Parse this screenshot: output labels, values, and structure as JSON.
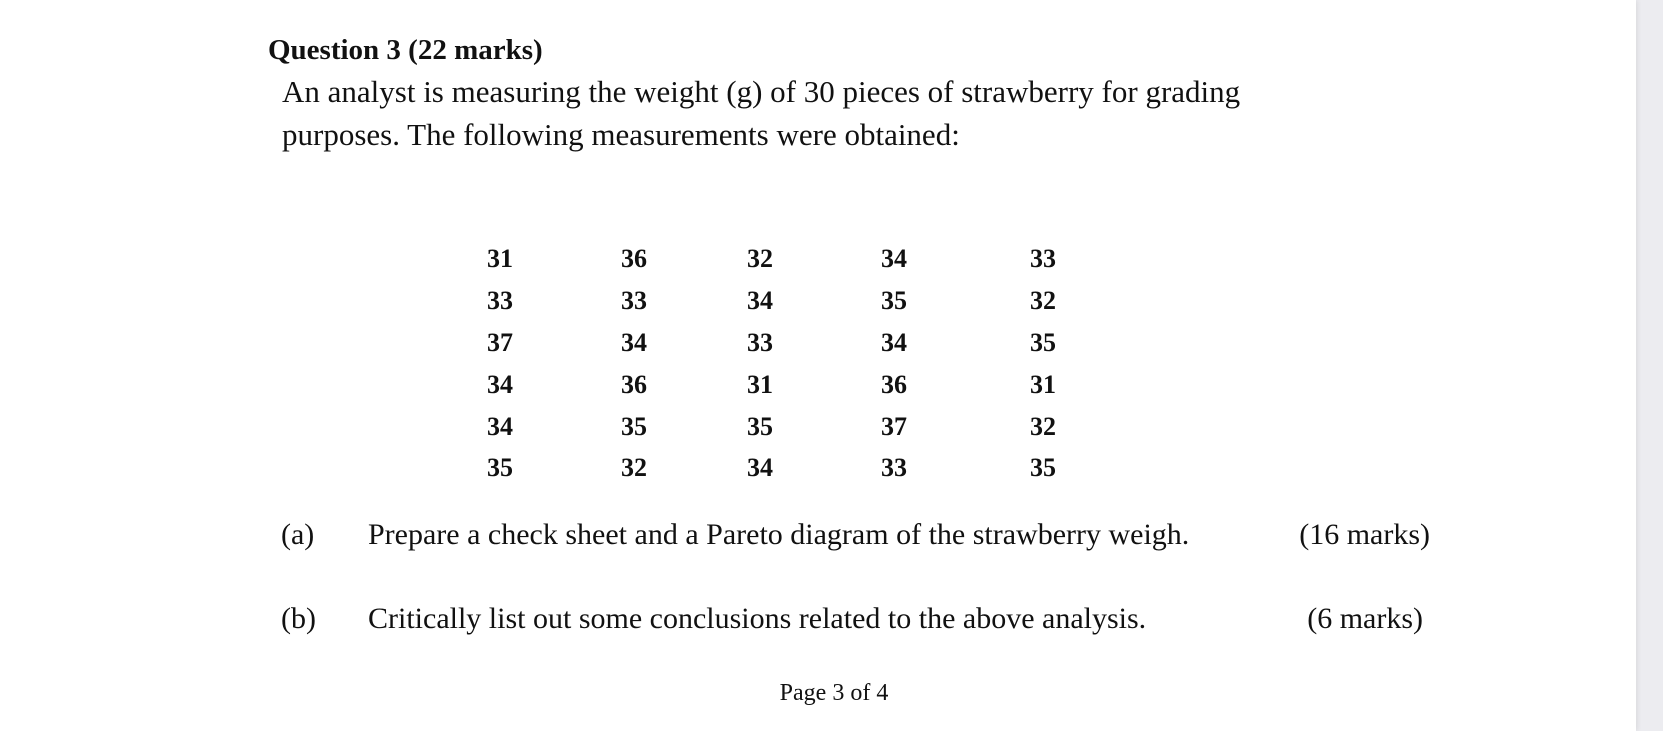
{
  "question": {
    "title": "Question 3 (22 marks)",
    "body_lines": [
      "An analyst is measuring the weight (g) of 30 pieces of strawberry for grading",
      "purposes. The following measurements were obtained:"
    ]
  },
  "measurements": [
    [
      "31",
      "36",
      "32",
      "34",
      "33"
    ],
    [
      "33",
      "33",
      "34",
      "35",
      "32"
    ],
    [
      "37",
      "34",
      "33",
      "34",
      "35"
    ],
    [
      "34",
      "36",
      "31",
      "36",
      "31"
    ],
    [
      "34",
      "35",
      "35",
      "37",
      "32"
    ],
    [
      "35",
      "32",
      "34",
      "33",
      "35"
    ]
  ],
  "parts": [
    {
      "label": "(a)",
      "text": "Prepare a check sheet and a Pareto diagram of the strawberry weigh.",
      "marks": "(16 marks)"
    },
    {
      "label": "(b)",
      "text": "Critically list out some conclusions related to the above analysis.",
      "marks": "(6 marks)"
    }
  ],
  "footer": "Page 3 of 4"
}
